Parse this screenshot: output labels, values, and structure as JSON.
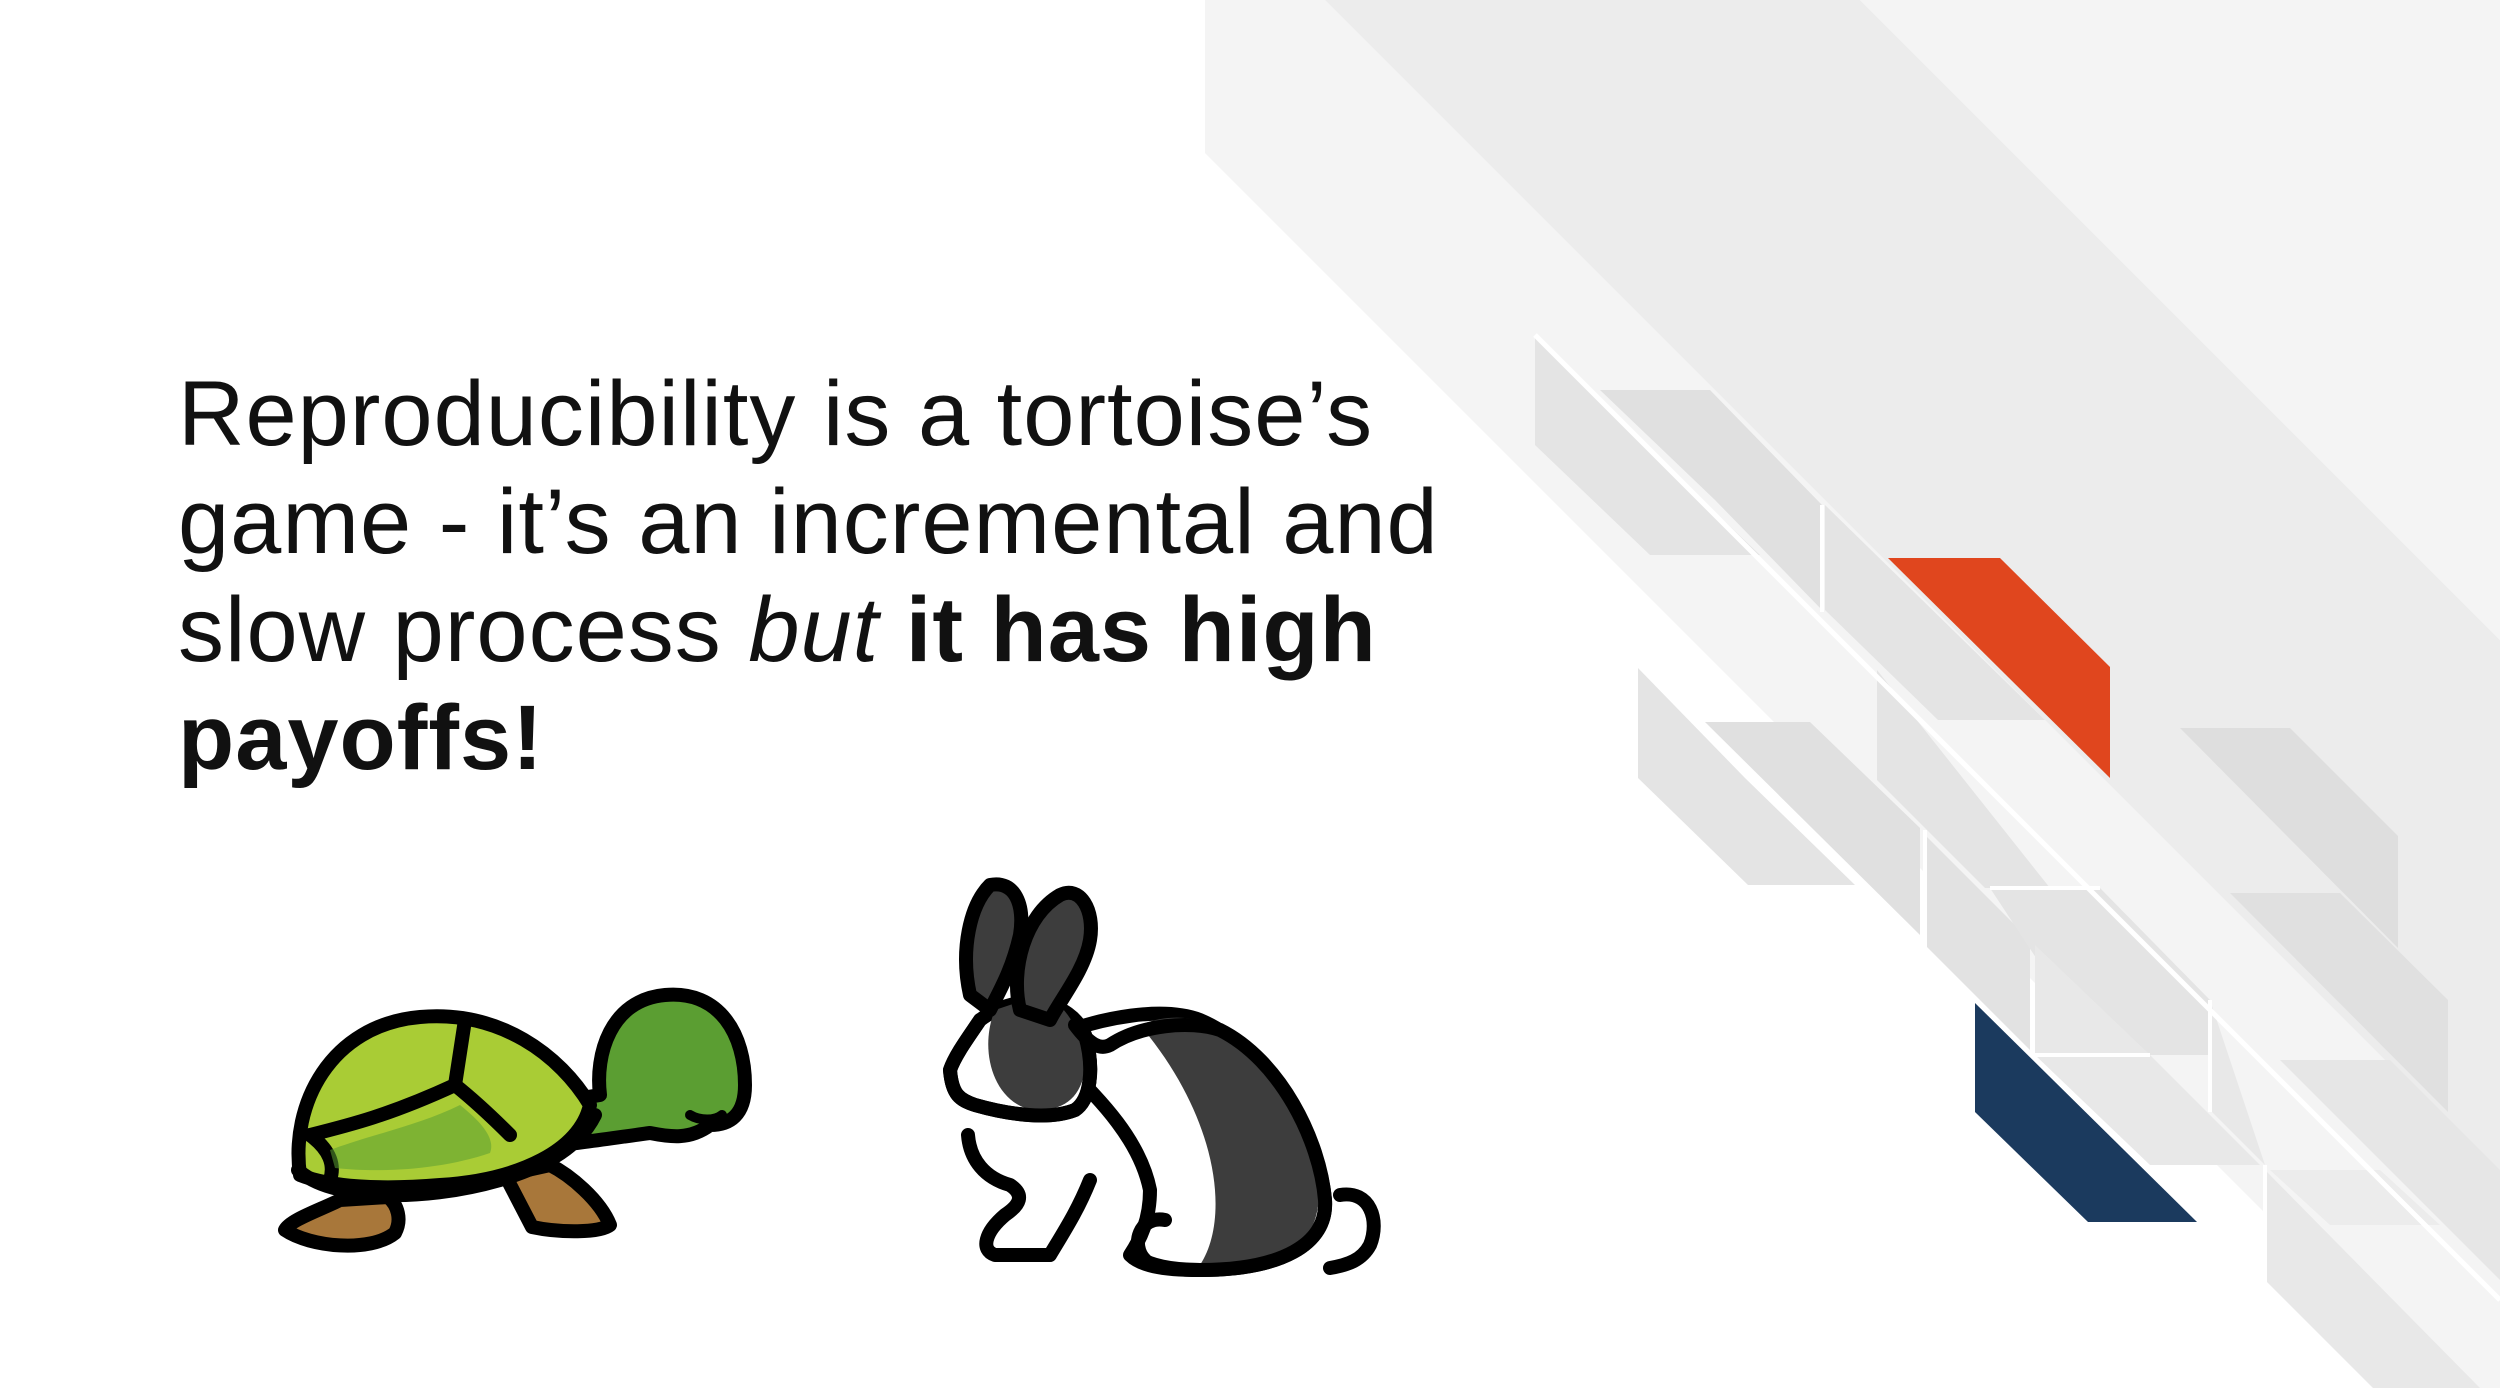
{
  "slide": {
    "headline": {
      "part_regular": "Reproducibility is a tortoise’s game - it’s an incremental and slow process ",
      "part_italic": "but",
      "part_space": " ",
      "part_bold": "it has high payoffs!"
    },
    "illustrations": {
      "tortoise": "tortoise-icon",
      "rabbit": "rabbit-icon"
    },
    "colors": {
      "background": "#ffffff",
      "text": "#111111",
      "accent_orange": "#e0461e",
      "accent_navy": "#1b3a5e",
      "decor_gray_light": "#f2f2f2",
      "decor_gray_mid": "#e6e6e6",
      "decor_gray_dark": "#d9d9d9",
      "tortoise_shell": "#a9cc35",
      "tortoise_body": "#5b9e32",
      "tortoise_feet": "#a8773a",
      "rabbit_fur": "#3d3d3d",
      "outline": "#000000"
    }
  }
}
